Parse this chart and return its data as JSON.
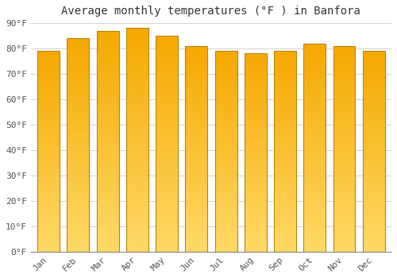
{
  "months": [
    "Jan",
    "Feb",
    "Mar",
    "Apr",
    "May",
    "Jun",
    "Jul",
    "Aug",
    "Sep",
    "Oct",
    "Nov",
    "Dec"
  ],
  "values": [
    79,
    84,
    87,
    88,
    85,
    81,
    79,
    78,
    79,
    82,
    81,
    79
  ],
  "title": "Average monthly temperatures (°F ) in Banfora",
  "ylim": [
    0,
    90
  ],
  "yticks": [
    0,
    10,
    20,
    30,
    40,
    50,
    60,
    70,
    80,
    90
  ],
  "ytick_labels": [
    "0°F",
    "10°F",
    "20°F",
    "30°F",
    "40°F",
    "50°F",
    "60°F",
    "70°F",
    "80°F",
    "90°F"
  ],
  "bar_color_top": "#F5A800",
  "bar_color_bottom": "#FFD966",
  "bar_edge_color": "#B8860B",
  "background_color": "#FFFFFF",
  "grid_color": "#CCCCCC",
  "title_fontsize": 10,
  "tick_fontsize": 8,
  "title_color": "#333333",
  "tick_color": "#555555"
}
